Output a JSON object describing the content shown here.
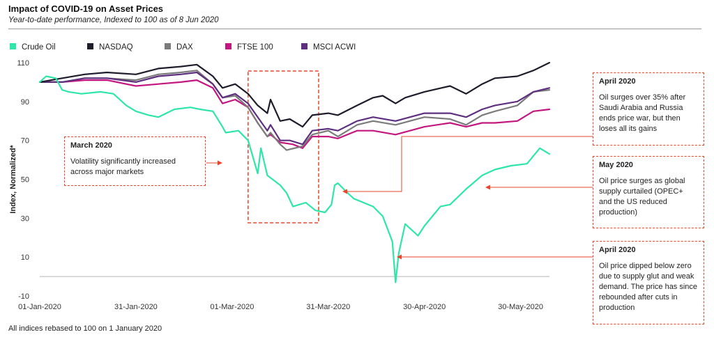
{
  "header": {
    "title": "Impact of COVID-19 on Asset Prices",
    "subtitle": "Year-to-date performance, Indexed to 100 as of 8 Jun 2020"
  },
  "footnote": "All indices rebased to 100 on 1 January  2020",
  "annotations": [
    {
      "title": "March 2020",
      "text": "Volatility significantly increased across major markets"
    },
    {
      "title": "April 2020",
      "text": "Oil surges over 35%  after Saudi Arabia and Russia ends price war, but then loses all its gains"
    },
    {
      "title": "May 2020",
      "text": "Oil price surges as global supply curtailed (OPEC+ and the US reduced production)"
    },
    {
      "title": "April 2020",
      "text": "Oil price dipped below zero due to supply glut and weak demand. The price has since rebounded after cuts in production"
    }
  ],
  "colors": {
    "Crude Oil": "#2ee6a6",
    "NASDAQ": "#1f1c2b",
    "DAX": "#7b7b7b",
    "FTSE 100": "#c4167f",
    "MSCI ACWI": "#5e2f7f",
    "annotation": "#e8452c"
  },
  "chart_data": {
    "type": "line",
    "title": "Impact of COVID-19 on Asset Prices",
    "subtitle": "Year-to-date performance, Indexed to 100 as of 8 Jun 2020",
    "xlabel": "",
    "ylabel": "Index, Normalized*",
    "ylim": [
      -10,
      110
    ],
    "yticks": [
      110,
      90,
      70,
      50,
      30,
      10,
      -10
    ],
    "ytick_labels": [
      "110",
      "90",
      "70",
      "50",
      "30",
      "10",
      "-10"
    ],
    "xlim": [
      "2020-01-01",
      "2020-06-08"
    ],
    "xticks": [
      "2020-01-01",
      "2020-01-31",
      "2020-03-01",
      "2020-03-31",
      "2020-04-30",
      "2020-05-30"
    ],
    "xtick_labels": [
      "01-Jan-2020",
      "31-Jan-2020",
      "01-Mar-2020",
      "31-Mar-2020",
      "30-Apr-2020",
      "30-May-2020"
    ],
    "grid": false,
    "legend": "top-left",
    "highlight_period": [
      "2020-03-06",
      "2020-03-28"
    ],
    "series": [
      {
        "name": "Crude Oil",
        "x": [
          "2020-01-01",
          "2020-01-03",
          "2020-01-06",
          "2020-01-08",
          "2020-01-10",
          "2020-01-14",
          "2020-01-20",
          "2020-01-24",
          "2020-01-28",
          "2020-01-31",
          "2020-02-04",
          "2020-02-07",
          "2020-02-12",
          "2020-02-17",
          "2020-02-20",
          "2020-02-24",
          "2020-02-27",
          "2020-02-28",
          "2020-03-03",
          "2020-03-06",
          "2020-03-09",
          "2020-03-10",
          "2020-03-12",
          "2020-03-16",
          "2020-03-18",
          "2020-03-20",
          "2020-03-24",
          "2020-03-27",
          "2020-03-30",
          "2020-04-01",
          "2020-04-02",
          "2020-04-03",
          "2020-04-06",
          "2020-04-08",
          "2020-04-14",
          "2020-04-17",
          "2020-04-20",
          "2020-04-21",
          "2020-04-22",
          "2020-04-24",
          "2020-04-28",
          "2020-04-30",
          "2020-05-05",
          "2020-05-08",
          "2020-05-13",
          "2020-05-18",
          "2020-05-22",
          "2020-05-27",
          "2020-06-01",
          "2020-06-05",
          "2020-06-08"
        ],
        "values": [
          100,
          103,
          102,
          96,
          95,
          94,
          95,
          94,
          88,
          85,
          83,
          82,
          86,
          87,
          86,
          85,
          77,
          74,
          75,
          70,
          53,
          66,
          52,
          47,
          43,
          36,
          38,
          34,
          33,
          37,
          47,
          48,
          43,
          40,
          36,
          31,
          18,
          -3,
          12,
          27,
          21,
          26,
          36,
          37,
          45,
          52,
          55,
          57,
          58,
          66,
          63
        ]
      },
      {
        "name": "NASDAQ",
        "x": [
          "2020-01-01",
          "2020-01-08",
          "2020-01-15",
          "2020-01-22",
          "2020-01-31",
          "2020-02-07",
          "2020-02-14",
          "2020-02-19",
          "2020-02-24",
          "2020-02-27",
          "2020-03-02",
          "2020-03-06",
          "2020-03-09",
          "2020-03-12",
          "2020-03-13",
          "2020-03-16",
          "2020-03-19",
          "2020-03-23",
          "2020-03-26",
          "2020-03-31",
          "2020-04-03",
          "2020-04-09",
          "2020-04-14",
          "2020-04-17",
          "2020-04-21",
          "2020-04-24",
          "2020-04-30",
          "2020-05-08",
          "2020-05-13",
          "2020-05-18",
          "2020-05-22",
          "2020-05-29",
          "2020-06-03",
          "2020-06-08"
        ],
        "values": [
          100,
          102,
          104,
          105,
          104,
          107,
          108,
          109,
          103,
          97,
          99,
          94,
          88,
          84,
          91,
          80,
          81,
          77,
          83,
          84,
          83,
          88,
          92,
          93,
          89,
          92,
          95,
          98,
          94,
          99,
          102,
          103,
          106,
          110
        ]
      },
      {
        "name": "DAX",
        "x": [
          "2020-01-01",
          "2020-01-08",
          "2020-01-15",
          "2020-01-22",
          "2020-01-31",
          "2020-02-07",
          "2020-02-14",
          "2020-02-19",
          "2020-02-24",
          "2020-02-27",
          "2020-03-02",
          "2020-03-06",
          "2020-03-09",
          "2020-03-12",
          "2020-03-13",
          "2020-03-16",
          "2020-03-18",
          "2020-03-23",
          "2020-03-26",
          "2020-03-31",
          "2020-04-03",
          "2020-04-09",
          "2020-04-14",
          "2020-04-21",
          "2020-04-30",
          "2020-05-08",
          "2020-05-13",
          "2020-05-18",
          "2020-05-22",
          "2020-05-29",
          "2020-06-03",
          "2020-06-08"
        ],
        "values": [
          100,
          100,
          102,
          102,
          101,
          104,
          105,
          106,
          99,
          92,
          93,
          87,
          79,
          72,
          74,
          68,
          65,
          67,
          73,
          75,
          72,
          78,
          80,
          78,
          82,
          81,
          78,
          83,
          85,
          88,
          95,
          96
        ]
      },
      {
        "name": "FTSE 100",
        "x": [
          "2020-01-01",
          "2020-01-08",
          "2020-01-15",
          "2020-01-22",
          "2020-01-31",
          "2020-02-07",
          "2020-02-14",
          "2020-02-19",
          "2020-02-24",
          "2020-02-27",
          "2020-03-02",
          "2020-03-06",
          "2020-03-09",
          "2020-03-12",
          "2020-03-13",
          "2020-03-16",
          "2020-03-20",
          "2020-03-23",
          "2020-03-26",
          "2020-03-31",
          "2020-04-03",
          "2020-04-09",
          "2020-04-14",
          "2020-04-21",
          "2020-04-30",
          "2020-05-08",
          "2020-05-13",
          "2020-05-18",
          "2020-05-22",
          "2020-05-29",
          "2020-06-03",
          "2020-06-08"
        ],
        "values": [
          100,
          100,
          101,
          101,
          98,
          99,
          100,
          101,
          97,
          89,
          91,
          87,
          79,
          72,
          73,
          69,
          68,
          66,
          72,
          72,
          71,
          75,
          75,
          73,
          77,
          79,
          77,
          79,
          79,
          80,
          85,
          86
        ]
      },
      {
        "name": "MSCI ACWI",
        "x": [
          "2020-01-01",
          "2020-01-08",
          "2020-01-15",
          "2020-01-22",
          "2020-01-31",
          "2020-02-07",
          "2020-02-14",
          "2020-02-19",
          "2020-02-24",
          "2020-02-27",
          "2020-03-02",
          "2020-03-06",
          "2020-03-09",
          "2020-03-12",
          "2020-03-13",
          "2020-03-16",
          "2020-03-19",
          "2020-03-23",
          "2020-03-26",
          "2020-03-31",
          "2020-04-03",
          "2020-04-09",
          "2020-04-14",
          "2020-04-21",
          "2020-04-30",
          "2020-05-08",
          "2020-05-13",
          "2020-05-18",
          "2020-05-22",
          "2020-05-29",
          "2020-06-03",
          "2020-06-08"
        ],
        "values": [
          100,
          100,
          102,
          102,
          100,
          103,
          104,
          105,
          99,
          92,
          94,
          89,
          82,
          75,
          78,
          70,
          70,
          68,
          75,
          76,
          75,
          80,
          82,
          80,
          84,
          84,
          82,
          86,
          88,
          90,
          95,
          97
        ]
      }
    ]
  }
}
